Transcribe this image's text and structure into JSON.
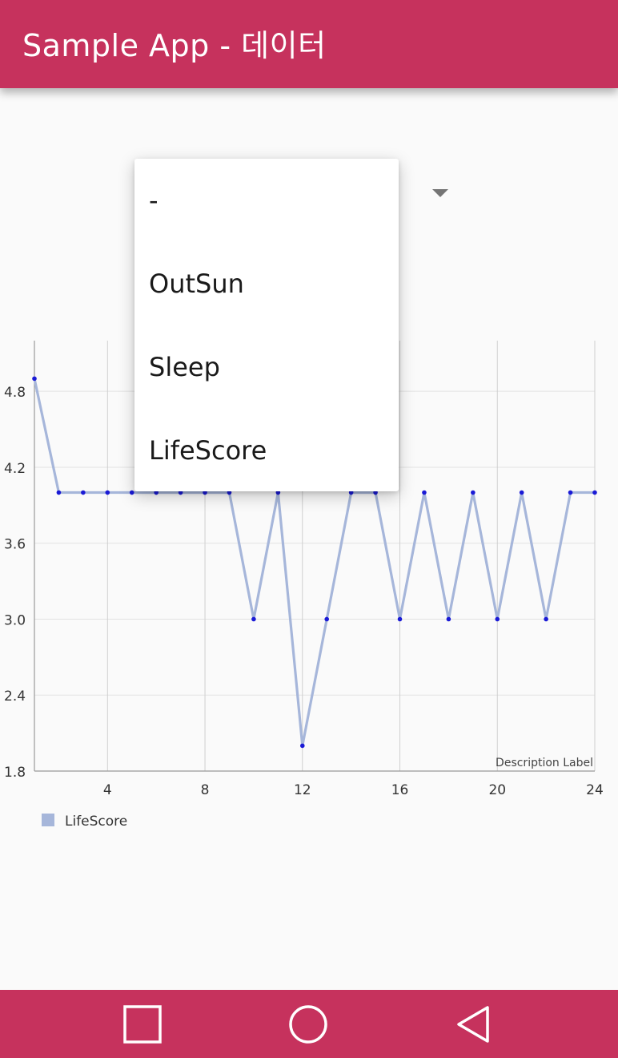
{
  "app_bar": {
    "title": "Sample App - 데이터",
    "background": "#c6325d"
  },
  "spinner": {
    "icon": "dropdown-arrow-icon",
    "options": [
      "-",
      "OutSun",
      "Sleep",
      "LifeScore"
    ]
  },
  "chart_data": {
    "type": "line",
    "x": [
      1,
      2,
      3,
      4,
      5,
      6,
      7,
      8,
      9,
      10,
      11,
      12,
      13,
      14,
      15,
      16,
      17,
      18,
      19,
      20,
      21,
      22,
      23,
      24
    ],
    "series": [
      {
        "name": "LifeScore",
        "values": [
          4.9,
          4,
          4,
          4,
          4,
          4,
          4,
          4,
          4,
          3,
          4,
          2,
          3,
          4,
          4,
          3,
          4,
          3,
          4,
          3,
          4,
          3,
          4,
          4
        ],
        "line_color": "#a6b6da",
        "point_color": "#1a1ad6"
      }
    ],
    "xticks": [
      4,
      8,
      12,
      16,
      20,
      24
    ],
    "yticks": [
      1.8,
      2.4,
      3.0,
      3.6,
      4.2,
      4.8
    ],
    "xlim": [
      1,
      24
    ],
    "ylim": [
      1.8,
      5.2
    ],
    "grid": true,
    "legend": "bottom-left",
    "description": "Description Label"
  },
  "nav_bar": {
    "background": "#c6325d",
    "recents_icon": "square-icon",
    "home_icon": "circle-icon",
    "back_icon": "triangle-back-icon"
  }
}
